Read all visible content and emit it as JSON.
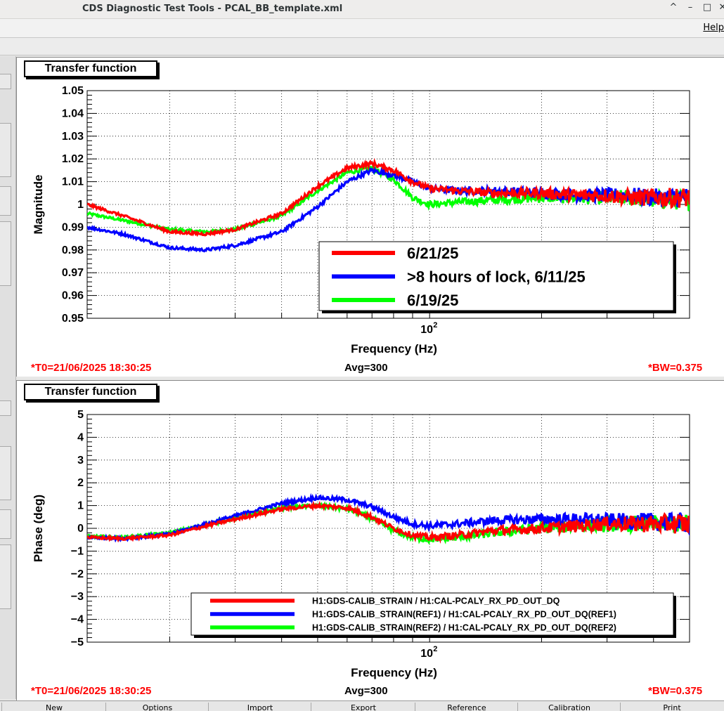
{
  "window": {
    "title": "CDS Diagnostic Test Tools - PCAL_BB_template.xml",
    "controls": [
      "^",
      "–",
      "□",
      "✕"
    ]
  },
  "menubar": {
    "help": "Help"
  },
  "bottom_buttons": [
    "New",
    "Options",
    "Import",
    "Export",
    "Reference",
    "Calibration",
    "Print"
  ],
  "colors": {
    "red": "#ff0000",
    "blue": "#0000ff",
    "green": "#00ff00"
  },
  "panels": [
    {
      "label": "Transfer function",
      "t0": "*T0=21/06/2025 18:30:25",
      "avg": "Avg=300",
      "bw": "*BW=0.375",
      "legend": [
        "6/21/25",
        ">8 hours of lock, 6/11/25",
        "6/19/25"
      ]
    },
    {
      "label": "Transfer function",
      "t0": "*T0=21/06/2025 18:30:25",
      "avg": "Avg=300",
      "bw": "*BW=0.375",
      "legend": [
        "H1:GDS-CALIB_STRAIN / H1:CAL-PCALY_RX_PD_OUT_DQ",
        "H1:GDS-CALIB_STRAIN(REF1) / H1:CAL-PCALY_RX_PD_OUT_DQ(REF1)",
        "H1:GDS-CALIB_STRAIN(REF2) / H1:CAL-PCALY_RX_PD_OUT_DQ(REF2)"
      ]
    }
  ],
  "chart_data": [
    {
      "type": "line",
      "xlabel": "Frequency (Hz)",
      "ylabel": "Magnitude",
      "xscale": "log",
      "xlim": [
        12,
        500
      ],
      "ylim": [
        0.95,
        1.05
      ],
      "y_ticks": [
        "0.95",
        "0.96",
        "0.97",
        "0.98",
        "0.99",
        "1",
        "1.01",
        "1.02",
        "1.03",
        "1.04",
        "1.05"
      ],
      "x_tick_labels": [
        "10²"
      ],
      "grid": true,
      "legend_position": "bottom-right",
      "x": [
        12,
        15,
        20,
        25,
        30,
        40,
        50,
        60,
        70,
        80,
        90,
        100,
        120,
        150,
        200,
        250,
        300,
        350,
        400,
        450,
        500
      ],
      "series": [
        {
          "name": "6/21/25",
          "color": "#ff0000",
          "values": [
            1.0,
            0.995,
            0.988,
            0.987,
            0.989,
            0.996,
            1.008,
            1.016,
            1.018,
            1.015,
            1.01,
            1.007,
            1.006,
            1.005,
            1.005,
            1.004,
            1.004,
            1.003,
            1.003,
            1.003,
            1.003
          ]
        },
        {
          "name": ">8 hours of lock, 6/11/25",
          "color": "#0000ff",
          "values": [
            0.99,
            0.987,
            0.981,
            0.98,
            0.982,
            0.988,
            0.999,
            1.01,
            1.015,
            1.013,
            1.01,
            1.007,
            1.006,
            1.006,
            1.005,
            1.004,
            1.004,
            1.004,
            1.003,
            1.003,
            1.003
          ]
        },
        {
          "name": "6/19/25",
          "color": "#00ff00",
          "values": [
            0.996,
            0.993,
            0.989,
            0.988,
            0.989,
            0.995,
            1.006,
            1.014,
            1.016,
            1.011,
            1.003,
            1.0,
            1.001,
            1.002,
            1.003,
            1.003,
            1.003,
            1.003,
            1.002,
            1.002,
            1.002
          ]
        }
      ]
    },
    {
      "type": "line",
      "xlabel": "Frequency (Hz)",
      "ylabel": "Phase (deg)",
      "xscale": "log",
      "xlim": [
        12,
        500
      ],
      "ylim": [
        -5,
        5
      ],
      "y_ticks": [
        "−5",
        "−4",
        "−3",
        "−2",
        "−1",
        "0",
        "1",
        "2",
        "3",
        "4",
        "5"
      ],
      "x_tick_labels": [
        "10²"
      ],
      "grid": true,
      "legend_position": "bottom-right",
      "x": [
        12,
        15,
        20,
        25,
        30,
        40,
        50,
        60,
        70,
        80,
        90,
        100,
        120,
        150,
        200,
        250,
        300,
        350,
        400,
        450,
        500
      ],
      "series": [
        {
          "name": "H1:GDS-CALIB_STRAIN / H1:CAL-PCALY_RX_PD_OUT_DQ",
          "color": "#ff0000",
          "values": [
            -0.4,
            -0.45,
            -0.3,
            0.1,
            0.4,
            0.85,
            1.0,
            0.9,
            0.5,
            0.0,
            -0.3,
            -0.4,
            -0.3,
            -0.1,
            0.0,
            0.1,
            0.2,
            0.2,
            0.2,
            0.2,
            0.2
          ]
        },
        {
          "name": "H1:GDS-CALIB_STRAIN(REF1) / H1:CAL-PCALY_RX_PD_OUT_DQ(REF1)",
          "color": "#0000ff",
          "values": [
            -0.4,
            -0.45,
            -0.25,
            0.2,
            0.55,
            1.1,
            1.35,
            1.25,
            0.95,
            0.5,
            0.2,
            0.1,
            0.2,
            0.35,
            0.4,
            0.4,
            0.35,
            0.3,
            0.3,
            0.25,
            0.25
          ]
        },
        {
          "name": "H1:GDS-CALIB_STRAIN(REF2) / H1:CAL-PCALY_RX_PD_OUT_DQ(REF2)",
          "color": "#00ff00",
          "values": [
            -0.35,
            -0.4,
            -0.2,
            0.15,
            0.45,
            0.9,
            1.0,
            0.85,
            0.45,
            -0.1,
            -0.4,
            -0.5,
            -0.4,
            -0.2,
            0.0,
            0.1,
            0.15,
            0.2,
            0.2,
            0.2,
            0.2
          ]
        }
      ]
    }
  ]
}
